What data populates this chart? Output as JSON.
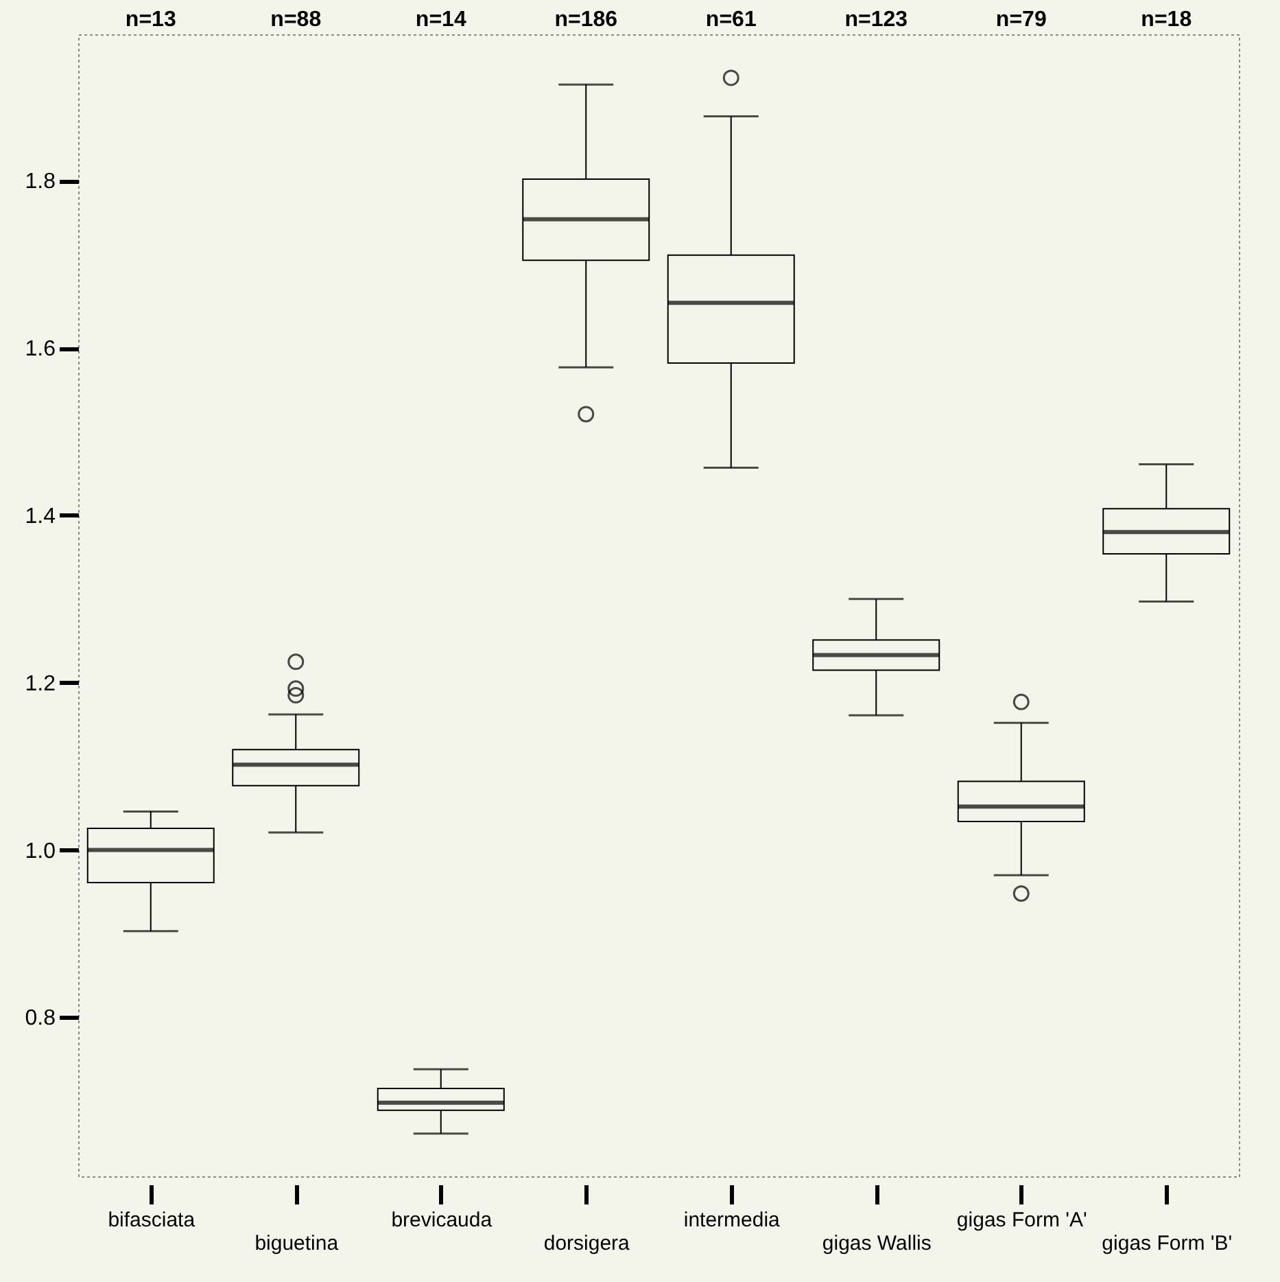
{
  "chart_data": {
    "type": "box",
    "categories": [
      "bifasciata",
      "biguetina",
      "brevicauda",
      "dorsigera",
      "intermedia",
      "gigas Wallis",
      "gigas Form 'A'",
      "gigas Form 'B'"
    ],
    "boxes": [
      {
        "low": 0.903,
        "q1": 0.961,
        "median": 1.0,
        "q3": 1.026,
        "high": 1.046
      },
      {
        "low": 1.021,
        "q1": 1.077,
        "median": 1.102,
        "q3": 1.12,
        "high": 1.162,
        "outliers": [
          1.185,
          1.193,
          1.225
        ]
      },
      {
        "low": 0.661,
        "q1": 0.689,
        "median": 0.698,
        "q3": 0.715,
        "high": 0.738
      },
      {
        "low": 1.577,
        "q1": 1.705,
        "median": 1.754,
        "q3": 1.802,
        "high": 1.915,
        "outliers": [
          1.521
        ]
      },
      {
        "low": 1.457,
        "q1": 1.582,
        "median": 1.654,
        "q3": 1.711,
        "high": 1.877,
        "outliers": [
          1.923
        ]
      },
      {
        "low": 1.161,
        "q1": 1.215,
        "median": 1.233,
        "q3": 1.251,
        "high": 1.3
      },
      {
        "low": 0.97,
        "q1": 1.034,
        "median": 1.052,
        "q3": 1.082,
        "high": 1.152,
        "outliers": [
          0.948,
          1.177
        ]
      },
      {
        "low": 1.297,
        "q1": 1.354,
        "median": 1.38,
        "q3": 1.408,
        "high": 1.461
      }
    ],
    "ylim": [
      0.61,
      1.975
    ],
    "yticks": [
      0.8,
      {
        "value": 1,
        "label": "1.0"
      },
      1.2,
      1.4,
      1.6,
      1.8
    ],
    "grid": false,
    "annotations": [
      "n=13",
      "n=88",
      "n=14",
      "n=186",
      "n=61",
      "n=123",
      "n=79",
      "n=18"
    ]
  }
}
